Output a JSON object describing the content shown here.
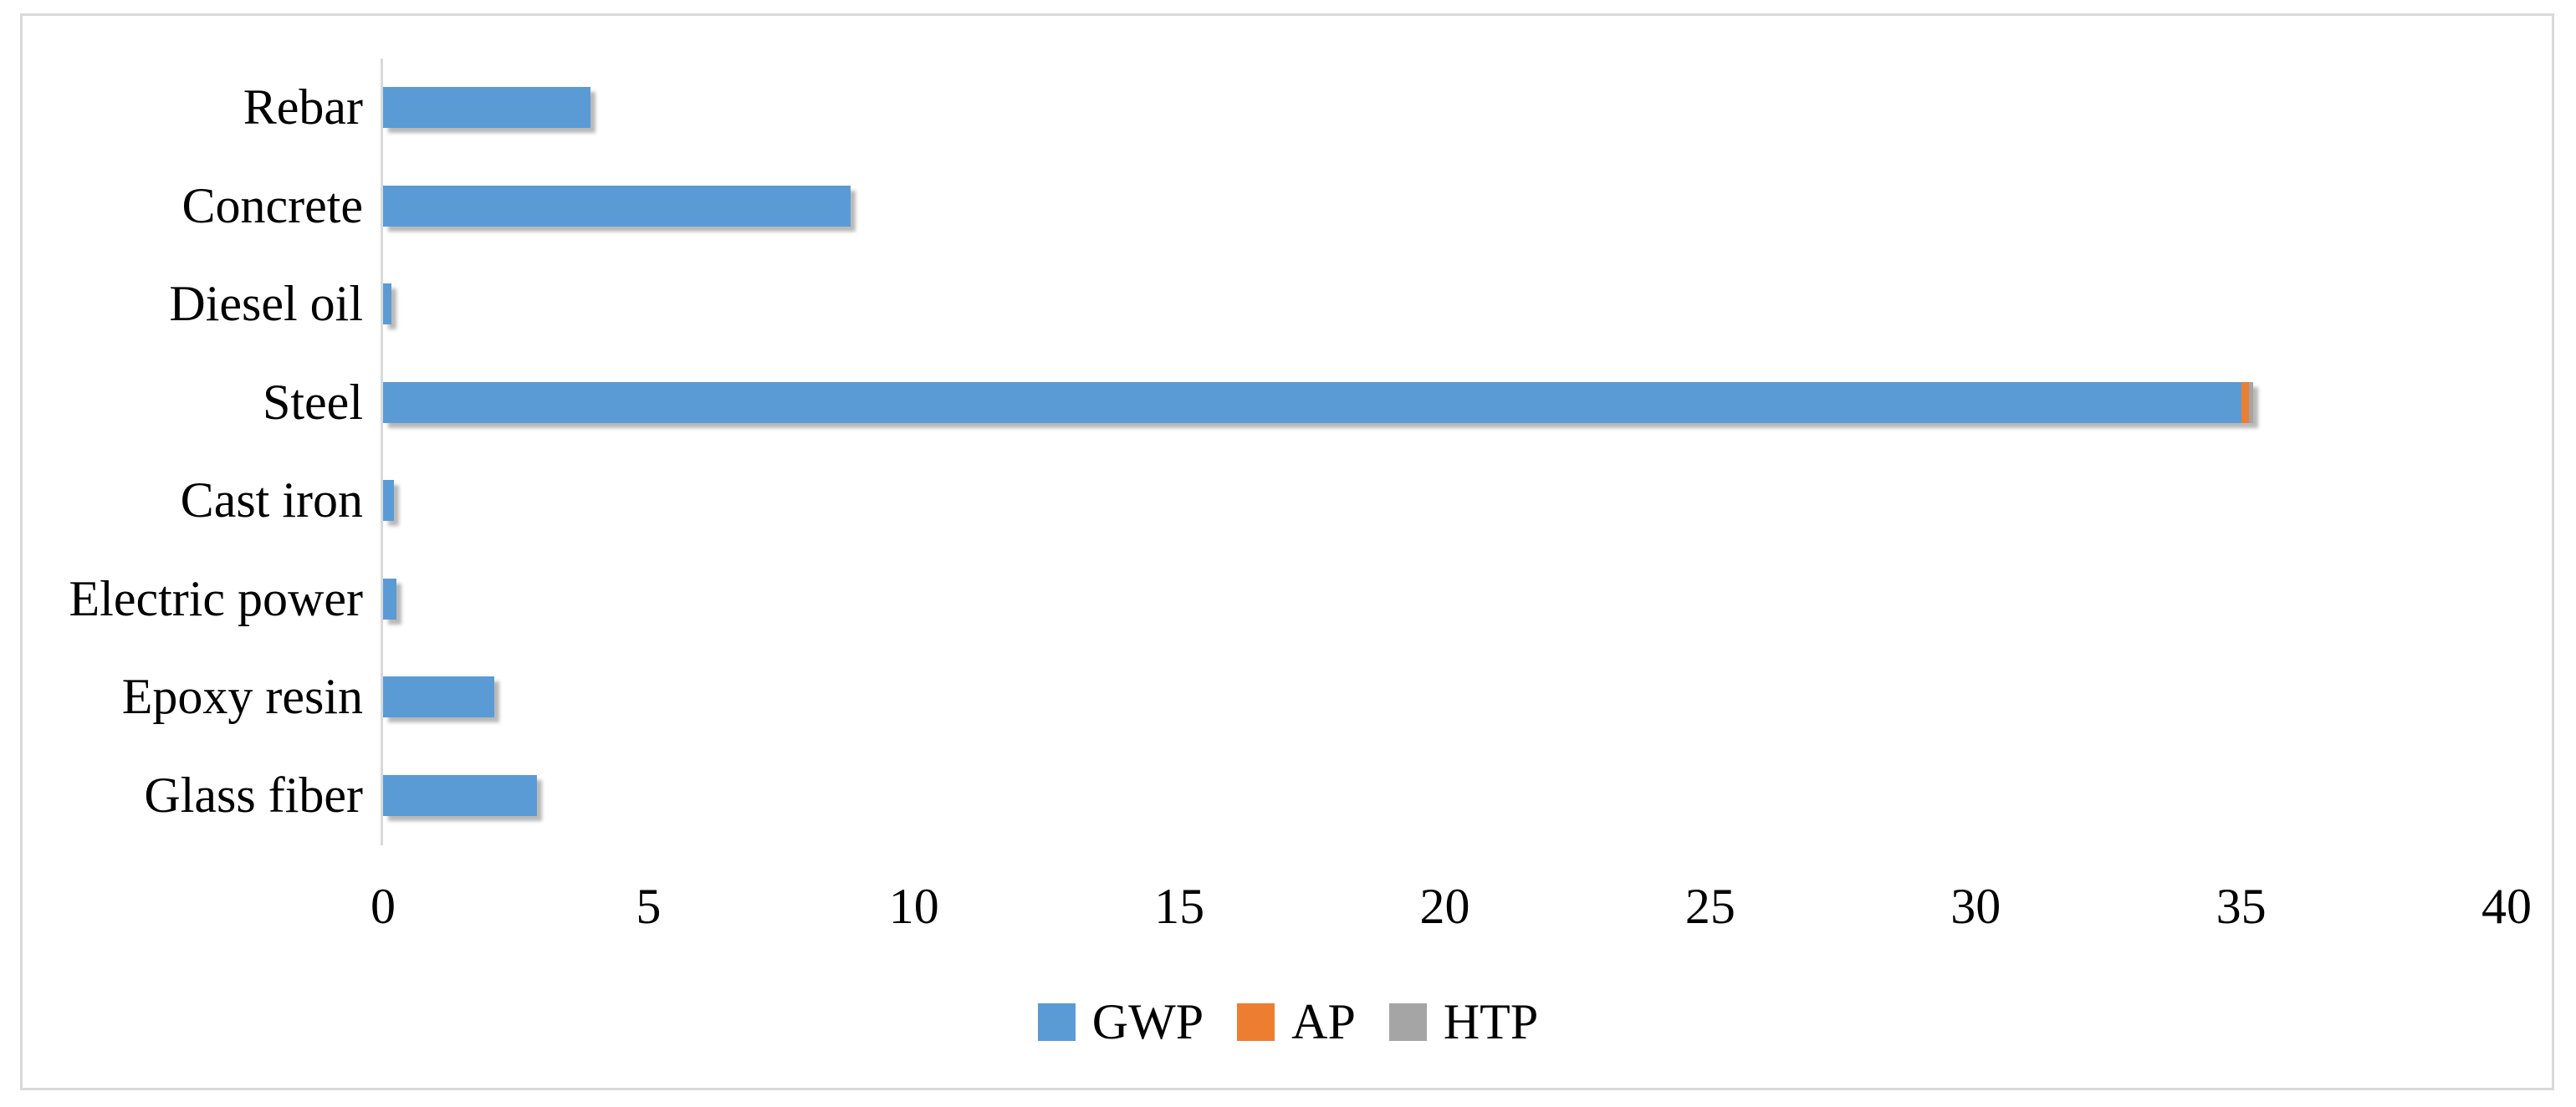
{
  "chart_data": {
    "type": "bar",
    "orientation": "horizontal",
    "stacked": true,
    "title": "",
    "xlabel": "",
    "ylabel": "",
    "categories": [
      "Rebar",
      "Concrete",
      "Diesel oil",
      "Steel",
      "Cast iron",
      "Electric power",
      "Epoxy resin",
      "Glass fiber"
    ],
    "series": [
      {
        "name": "GWP",
        "color": "#5B9BD5",
        "values": [
          3.9,
          8.8,
          0.15,
          35.0,
          0.2,
          0.25,
          2.1,
          2.9
        ]
      },
      {
        "name": "AP",
        "color": "#ED7D31",
        "values": [
          0,
          0,
          0,
          0.15,
          0,
          0,
          0,
          0
        ]
      },
      {
        "name": "HTP",
        "color": "#A5A5A5",
        "values": [
          0,
          0,
          0,
          0.07,
          0,
          0,
          0,
          0
        ]
      }
    ],
    "xlim": [
      0,
      40
    ],
    "xticks": [
      0,
      5,
      10,
      15,
      20,
      25,
      30,
      35,
      40
    ],
    "grid": false,
    "legend_position": "bottom-center",
    "axis_color": "#D9D9D9",
    "frame_color": "#D9D9D9",
    "bar_color_gwp": "#5B9BD5",
    "bar_color_ap": "#ED7D31",
    "bar_color_htp": "#A5A5A5"
  }
}
